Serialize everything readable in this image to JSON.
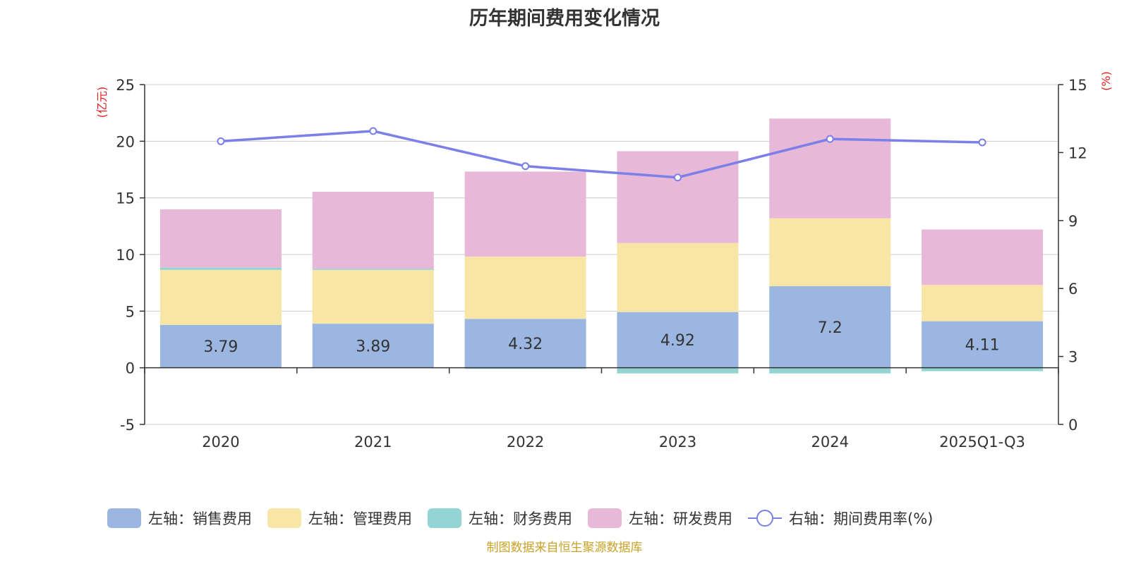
{
  "chart_data": {
    "type": "bar",
    "stacked": true,
    "title": "历年期间费用变化情况",
    "categories": [
      "2020",
      "2021",
      "2022",
      "2023",
      "2024",
      "2025Q1-Q3"
    ],
    "left_axis": {
      "label": "(亿元)",
      "ylim": [
        -5,
        25
      ],
      "ticks": [
        -5,
        0,
        5,
        10,
        15,
        20,
        25
      ]
    },
    "right_axis": {
      "label": "(%)",
      "ylim": [
        0,
        15
      ],
      "ticks": [
        0,
        3,
        6,
        9,
        12,
        15
      ]
    },
    "series": [
      {
        "name": "左轴：销售费用",
        "axis": "left",
        "kind": "bar",
        "color": "#9bb6e0",
        "values": [
          3.79,
          3.89,
          4.32,
          4.92,
          7.2,
          4.11
        ],
        "show_labels": true
      },
      {
        "name": "左轴：管理费用",
        "axis": "left",
        "kind": "bar",
        "color": "#f7e6a6",
        "values": [
          4.85,
          4.75,
          5.5,
          6.1,
          6.0,
          3.2
        ]
      },
      {
        "name": "左轴：财务费用",
        "axis": "left",
        "kind": "bar",
        "color": "#93d4d4",
        "values": [
          0.2,
          0.1,
          -0.1,
          -0.5,
          -0.5,
          -0.3
        ]
      },
      {
        "name": "左轴：研发费用",
        "axis": "left",
        "kind": "bar",
        "color": "#e8b8d8",
        "values": [
          5.15,
          6.8,
          7.5,
          8.1,
          8.8,
          4.9
        ]
      },
      {
        "name": "右轴：期间费用率(%)",
        "axis": "right",
        "kind": "line",
        "color": "#7b7fe8",
        "values": [
          12.5,
          12.95,
          11.4,
          10.9,
          12.6,
          12.45
        ]
      }
    ],
    "grid": true,
    "legend_position": "bottom"
  },
  "source_note": "制图数据来自恒生聚源数据库"
}
